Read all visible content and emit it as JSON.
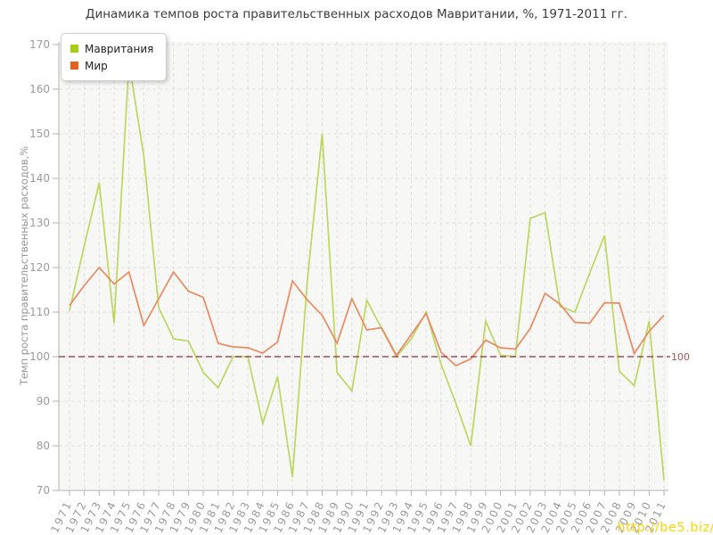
{
  "title": "Динамика темпов роста правительственных расходов Мавритании, %, 1971-2011 гг.",
  "y_axis_label": "Темп роста правительственных расходов,%",
  "legend": {
    "items": [
      {
        "label": "Мавритания",
        "color": "#a6cc13"
      },
      {
        "label": "Мир",
        "color": "#e2611f"
      }
    ]
  },
  "baseline": {
    "value": 100,
    "label": "100",
    "line_color": "#952b3f",
    "label_color": "#b05252"
  },
  "watermark": "http://be5.biz/",
  "colors": {
    "plot_bg": "#f7f7f6",
    "grid": "#e0e0e0",
    "axis": "#b3b3b3",
    "tick_label": "#9b9b9b",
    "mauritania_line": "#bdd65f",
    "world_line": "#e98a61"
  },
  "chart_data": {
    "type": "line",
    "title": "Динамика темпов роста правительственных расходов Мавритании, %, 1971-2011 гг.",
    "xlabel": "",
    "ylabel": "Темп роста правительственных расходов,%",
    "ylim": [
      70,
      170
    ],
    "yticks": [
      70,
      80,
      90,
      100,
      110,
      120,
      130,
      140,
      150,
      160,
      170
    ],
    "grid": "dashed",
    "legend_position": "top-left",
    "reference_line": 100,
    "categories": [
      "1971",
      "1972",
      "1973",
      "1974",
      "1975",
      "1976",
      "1977",
      "1978",
      "1979",
      "1980",
      "1981",
      "1982",
      "1983",
      "1984",
      "1985",
      "1986",
      "1987",
      "1988",
      "1989",
      "1990",
      "1991",
      "1992",
      "1993",
      "1994",
      "1995",
      "1996",
      "1997",
      "1998",
      "1999",
      "2000",
      "2001",
      "2002",
      "2003",
      "2004",
      "2005",
      "2006",
      "2007",
      "2008",
      "2009",
      "2010",
      "2011"
    ],
    "series": [
      {
        "name": "Мавритания",
        "color": "#bdd65f",
        "values": [
          110.3,
          125,
          139,
          107.5,
          166,
          145,
          111,
          104,
          103.5,
          96.5,
          93,
          100,
          100,
          85,
          95.5,
          73,
          117,
          150,
          96.5,
          92.3,
          112.7,
          106.3,
          100,
          104,
          110,
          98.3,
          89.5,
          80,
          108,
          100.3,
          100,
          131,
          132.3,
          111.3,
          110,
          118.7,
          127.2,
          96.7,
          93.5,
          108,
          72.3
        ]
      },
      {
        "name": "Мир",
        "color": "#e98a61",
        "values": [
          111.5,
          116,
          120,
          116.3,
          119,
          107,
          113,
          119,
          114.7,
          113.3,
          103,
          102.2,
          102,
          100.8,
          103.3,
          117,
          112.7,
          109.3,
          103,
          113,
          106,
          106.5,
          100.3,
          105,
          109.7,
          101,
          98,
          99.5,
          103.7,
          102,
          101.7,
          106.3,
          114.2,
          111.8,
          107.7,
          107.5,
          112.1,
          112,
          100.7,
          105.7,
          109.3
        ]
      }
    ]
  }
}
